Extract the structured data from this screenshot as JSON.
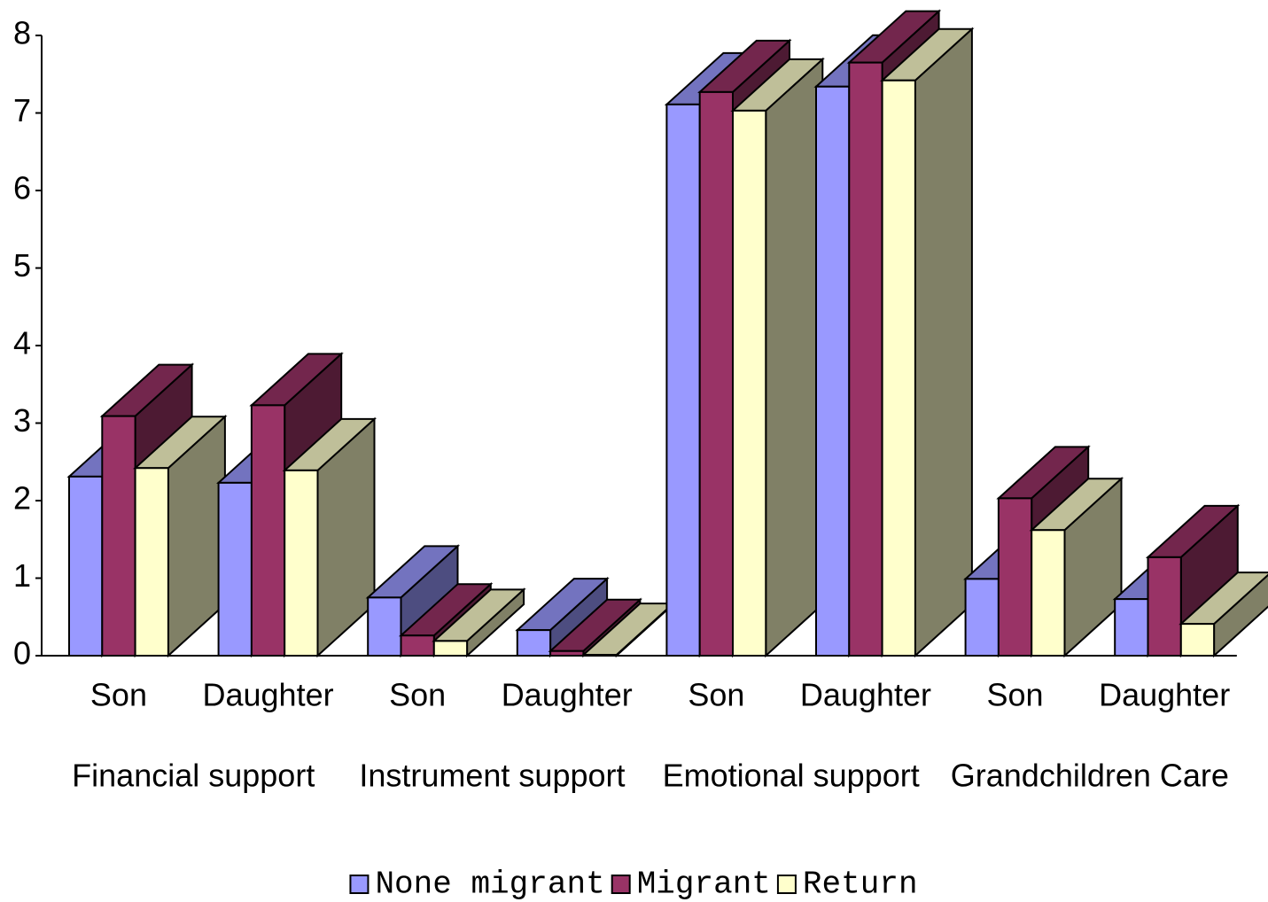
{
  "chart_data": {
    "type": "bar3d",
    "categories": [
      "Son",
      "Daughter",
      "Son",
      "Daughter",
      "Son",
      "Daughter",
      "Son",
      "Daughter"
    ],
    "groups": [
      "Financial support",
      "Instrument support",
      "Emotional support",
      "Grandchildren Care"
    ],
    "series": [
      {
        "name": "None migrant",
        "color": "#9999ff",
        "values": [
          2.31,
          2.23,
          0.75,
          0.33,
          7.11,
          7.34,
          0.99,
          0.73
        ]
      },
      {
        "name": "Migrant",
        "color": "#993366",
        "values": [
          3.09,
          3.23,
          0.26,
          0.06,
          7.27,
          7.65,
          2.03,
          1.27
        ]
      },
      {
        "name": "Return",
        "color": "#ffffcc",
        "values": [
          2.42,
          2.39,
          0.19,
          0.01,
          7.03,
          7.42,
          1.62,
          0.41
        ]
      }
    ],
    "ylim": [
      0,
      8
    ],
    "yticks": [
      0,
      1,
      2,
      3,
      4,
      5,
      6,
      7,
      8
    ],
    "legend": "bottom"
  }
}
